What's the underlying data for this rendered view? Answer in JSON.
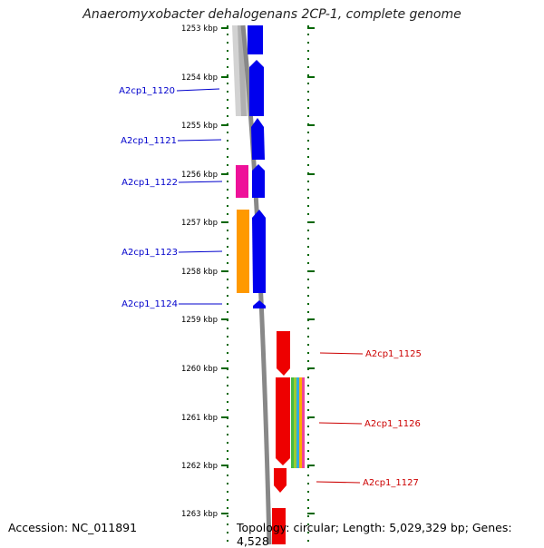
{
  "title": "Anaeromyxobacter dehalogenans 2CP-1, complete genome",
  "footer": {
    "accession": "Accession: NC_011891",
    "topology": "Topology: circular; Length: 5,029,329 bp; Genes: 4,528"
  },
  "colors": {
    "left_gene_label": "#0000cc",
    "right_gene_label": "#cc0000",
    "forward_strand_gene": "#0000ee",
    "reverse_strand_gene": "#ee0000",
    "magenta_feature": "#ee1199",
    "orange_feature": "#ff9900",
    "tick": "#006600",
    "backbone": "#888888"
  },
  "kbp_ticks": [
    "1253 kbp",
    "1254 kbp",
    "1255 kbp",
    "1256 kbp",
    "1257 kbp",
    "1258 kbp",
    "1259 kbp",
    "1260 kbp",
    "1261 kbp",
    "1262 kbp",
    "1263 kbp"
  ],
  "left_genes": [
    "A2cp1_1120",
    "A2cp1_1121",
    "A2cp1_1122",
    "A2cp1_1123",
    "A2cp1_1124"
  ],
  "right_genes": [
    "A2cp1_1125",
    "A2cp1_1126",
    "A2cp1_1127"
  ]
}
